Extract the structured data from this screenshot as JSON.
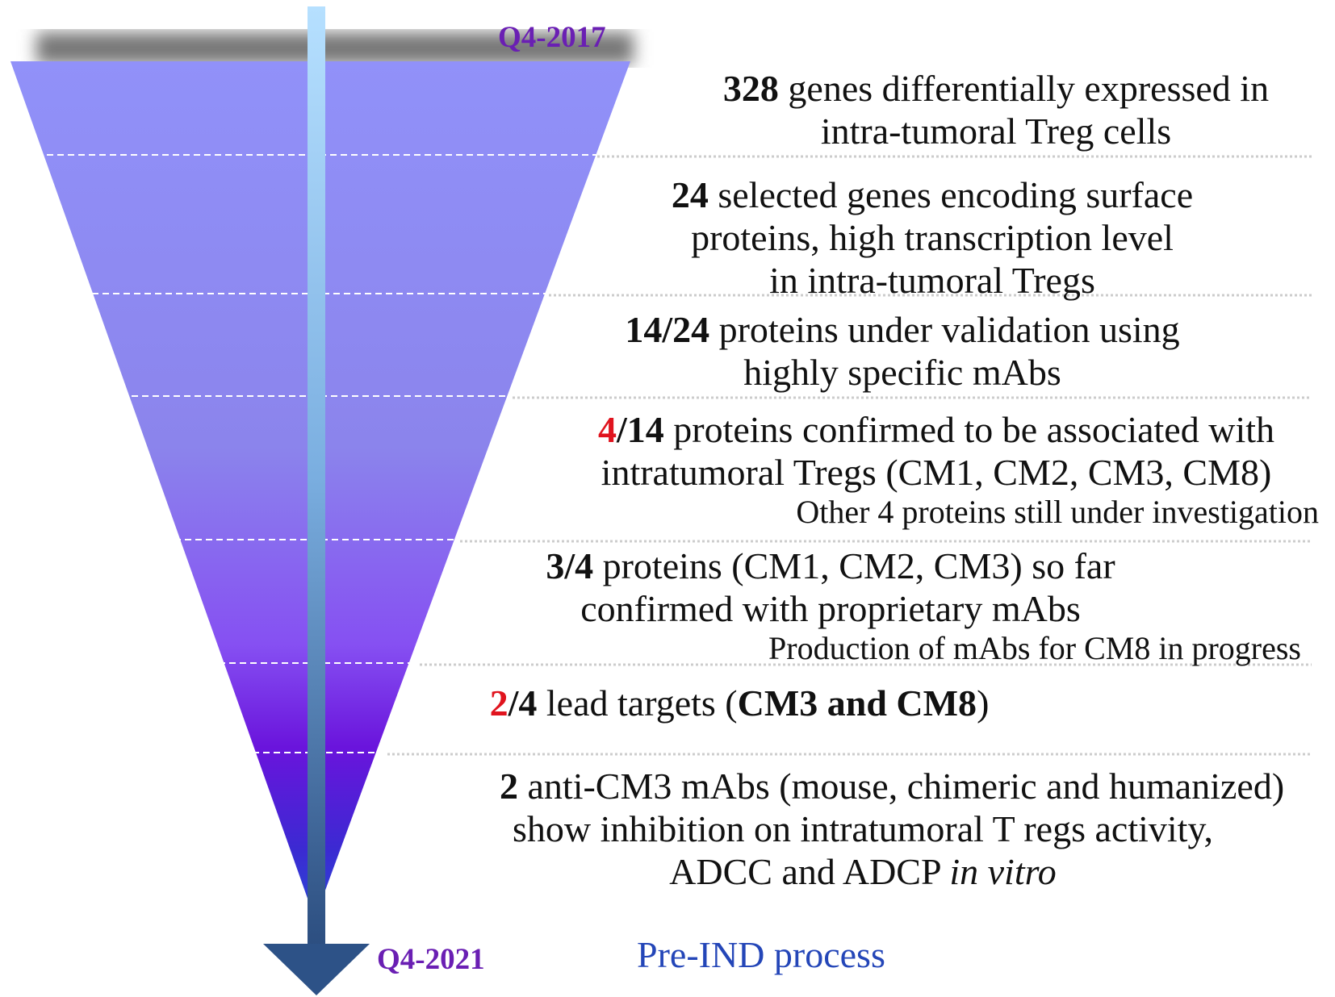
{
  "top_label": "Q4-2017",
  "bottom_label": "Q4-2021",
  "footer": "Pre-IND process",
  "stages": [
    {
      "lead": "328",
      "text": [
        "genes differentially expressed in",
        "intra-tumoral Treg cells"
      ]
    },
    {
      "lead": "24",
      "text": [
        "selected genes encoding surface",
        "proteins, high transcription level",
        "in intra-tumoral Tregs"
      ]
    },
    {
      "lead": "14/24",
      "text": [
        "proteins under validation using",
        "highly specific mAbs"
      ]
    },
    {
      "lead_red": "4",
      "lead": "/14",
      "text": [
        "proteins confirmed to be associated with",
        "intratumoral Tregs (CM1, CM2, CM3, CM8)"
      ],
      "note": "Other 4 proteins still under investigation"
    },
    {
      "lead": "3/4",
      "text": [
        "proteins (CM1, CM2, CM3) so far",
        "confirmed with proprietary mAbs"
      ],
      "note": "Production of  mAbs for CM8 in progress"
    },
    {
      "lead_red": "2",
      "lead": "/4",
      "text": [
        "lead targets ("
      ],
      "emphasis": "CM3 and CM8",
      "close": ")"
    },
    {
      "lead": "2",
      "text": [
        "anti-CM3 mAbs (mouse, chimeric and humanized)",
        "show inhibition on intratumoral T regs activity,",
        "ADCC and ADCP"
      ],
      "emphasis": "in vitro"
    }
  ]
}
